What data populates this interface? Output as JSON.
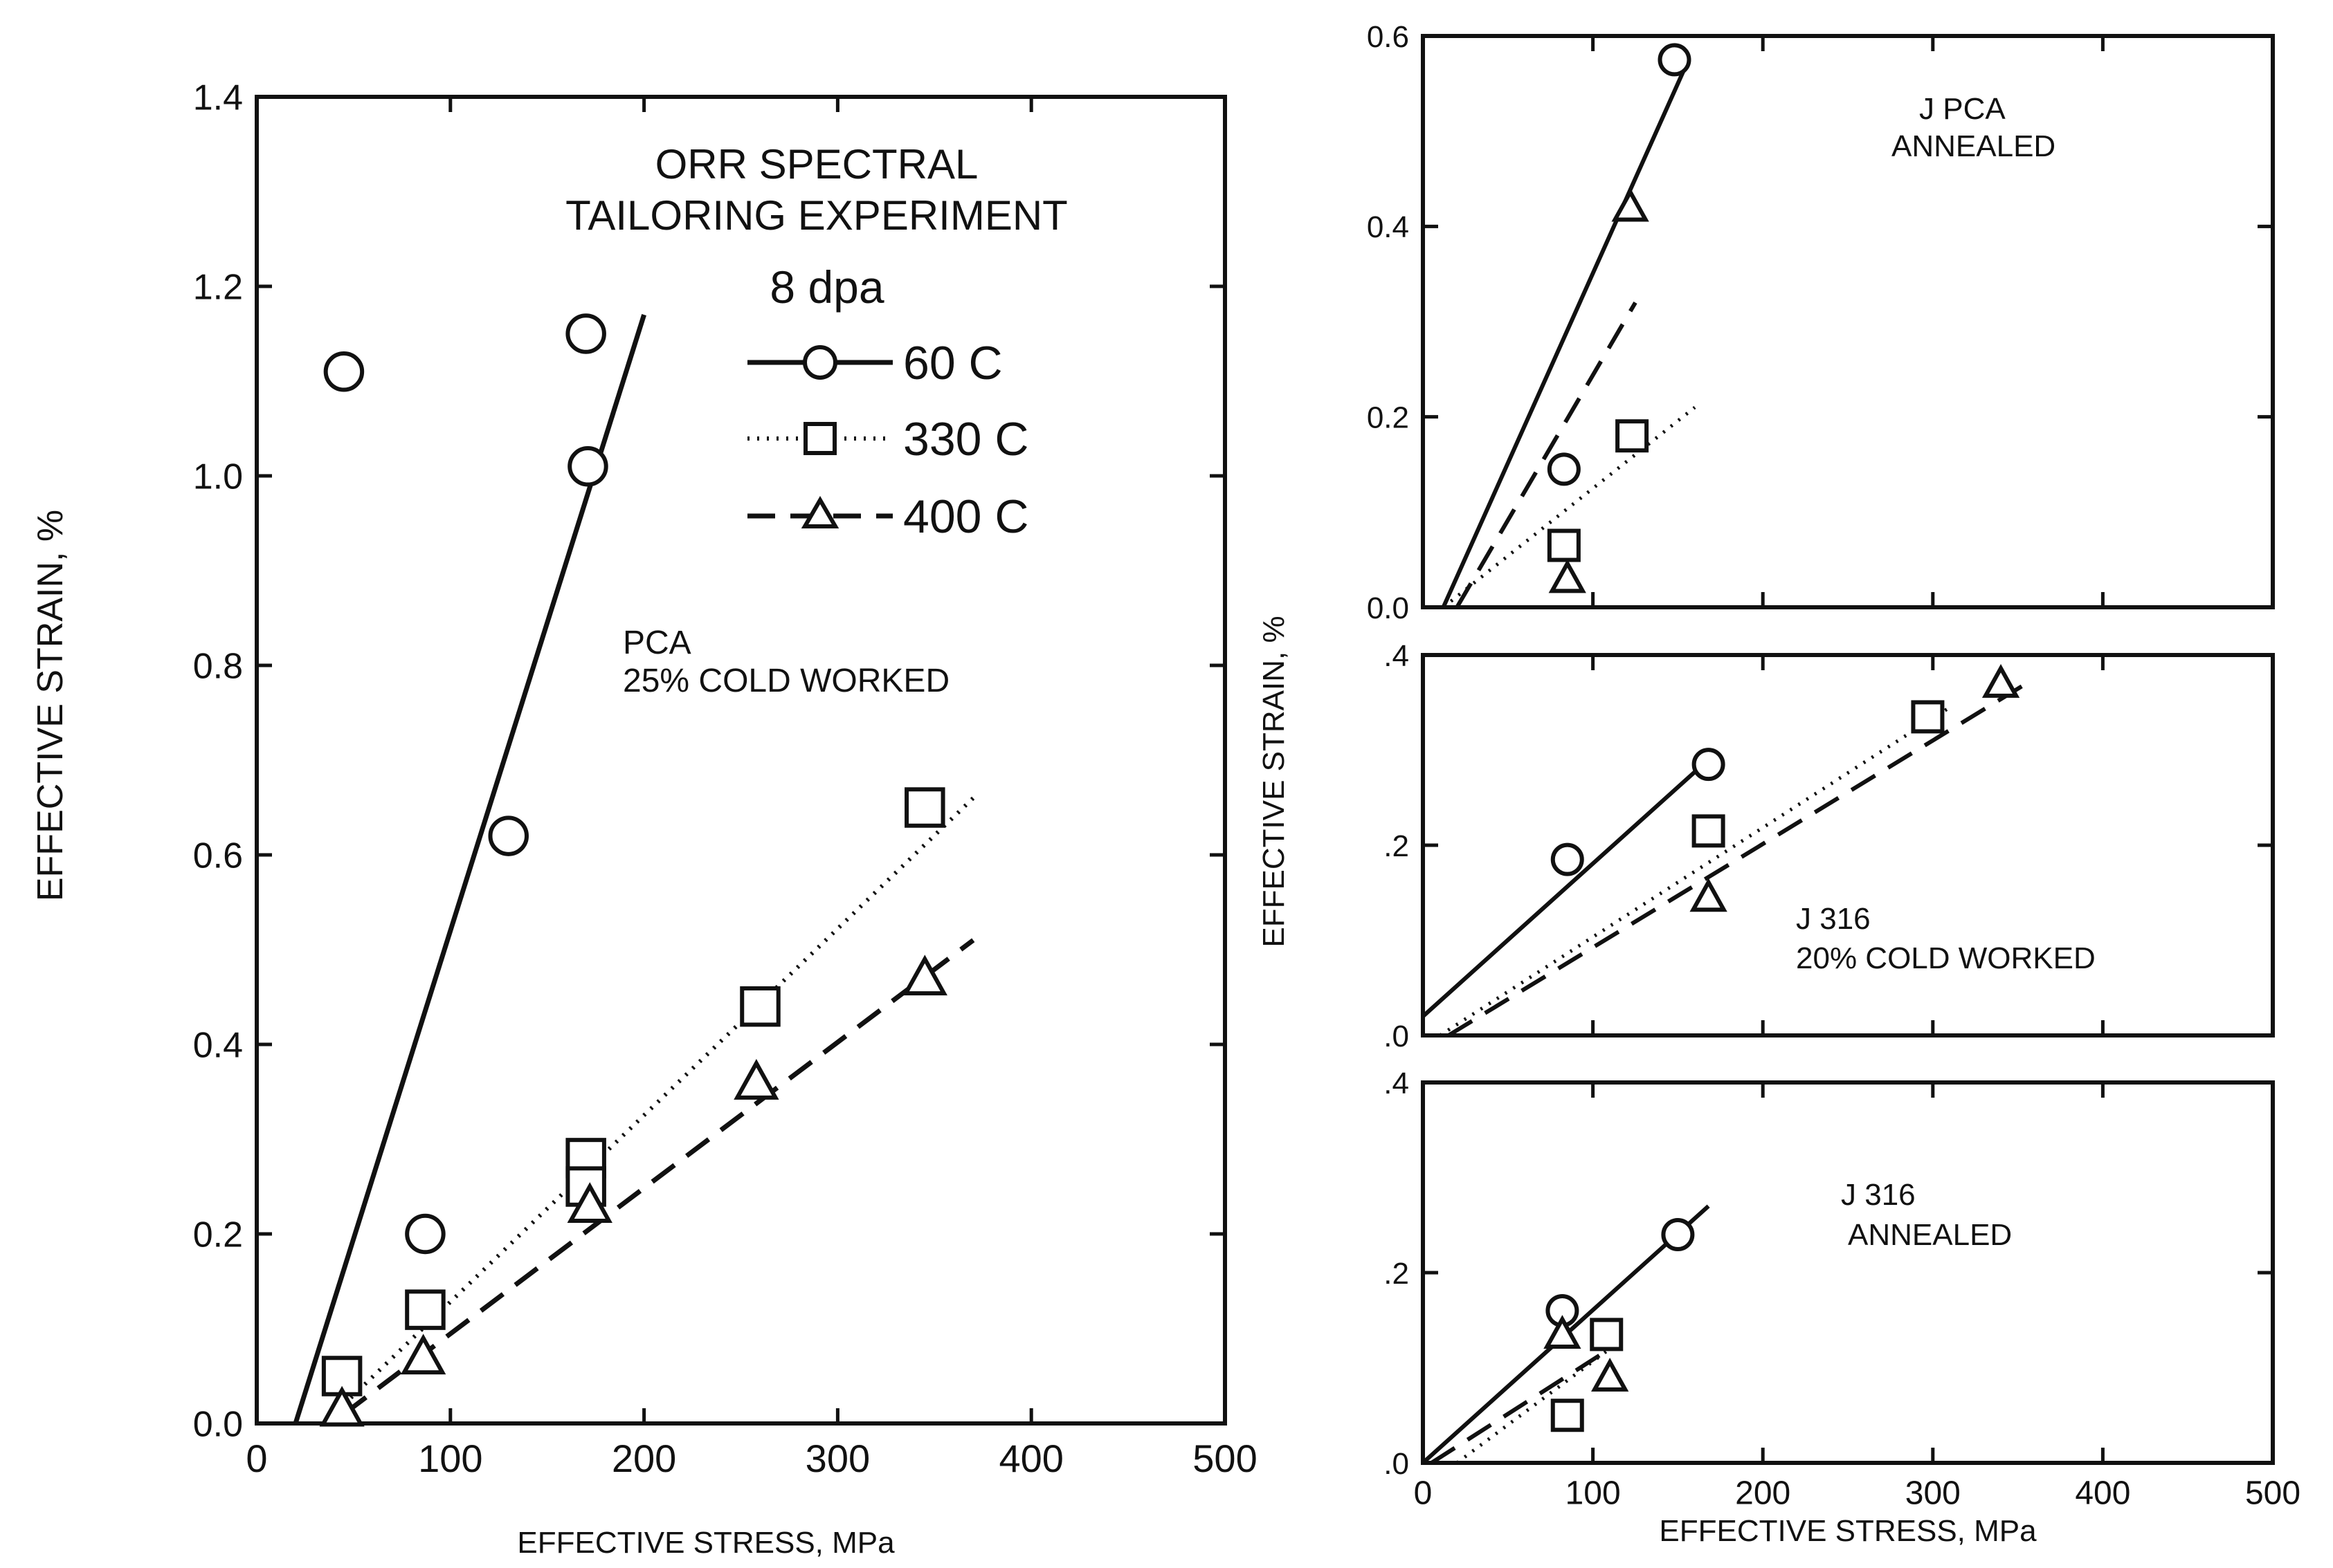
{
  "colors": {
    "ink": "#111111",
    "background": "#ffffff"
  },
  "legend": {
    "title_line1": "ORR SPECTRAL",
    "title_line2": "TAILORING EXPERIMENT",
    "dose": "8 dpa",
    "items": [
      {
        "label": "60 C",
        "marker": "circle",
        "line": "solid"
      },
      {
        "label": "330 C",
        "marker": "square",
        "line": "dotted"
      },
      {
        "label": "400 C",
        "marker": "triangle",
        "line": "dashed"
      }
    ]
  },
  "y_axis_label": "EFFECTIVE STRAIN, %",
  "x_axis_label": "EFFECTIVE STRESS, MPa",
  "chart_data": [
    {
      "type": "scatter",
      "title": "PCA 25% COLD WORKED",
      "title_lines": [
        "PCA",
        "25% COLD WORKED"
      ],
      "xlabel": "EFFECTIVE STRESS, MPa",
      "ylabel": "EFFECTIVE STRAIN, %",
      "xlim": [
        0,
        500
      ],
      "ylim": [
        0,
        1.4
      ],
      "xticks": [
        0,
        100,
        200,
        300,
        400,
        500
      ],
      "xtick_labels": [
        "0",
        "100",
        "200",
        "300",
        "400",
        "500"
      ],
      "yticks": [
        0,
        0.2,
        0.4,
        0.6,
        0.8,
        1.0,
        1.2,
        1.4
      ],
      "ytick_labels": [
        "0.0",
        "0.2",
        "0.4",
        "0.6",
        "0.8",
        "1.0",
        "1.2",
        "1.4"
      ],
      "series": [
        {
          "name": "60 C",
          "marker": "circle",
          "line": "solid",
          "points": [
            [
              45,
              1.11
            ],
            [
              170,
              1.15
            ],
            [
              171,
              1.01
            ],
            [
              130,
              0.62
            ],
            [
              87,
              0.2
            ]
          ],
          "fit": [
            [
              20,
              0.0
            ],
            [
              200,
              1.17
            ]
          ]
        },
        {
          "name": "330 C",
          "marker": "square",
          "line": "dotted",
          "points": [
            [
              44,
              0.05
            ],
            [
              87,
              0.12
            ],
            [
              170,
              0.28
            ],
            [
              170,
              0.25
            ],
            [
              260,
              0.44
            ],
            [
              345,
              0.65
            ]
          ],
          "fit": [
            [
              45,
              0.02
            ],
            [
              370,
              0.66
            ]
          ]
        },
        {
          "name": "400 C",
          "marker": "triangle",
          "line": "dashed",
          "points": [
            [
              44,
              0.015
            ],
            [
              86,
              0.07
            ],
            [
              172,
              0.23
            ],
            [
              258,
              0.36
            ],
            [
              345,
              0.47
            ]
          ],
          "fit": [
            [
              45,
              0.01
            ],
            [
              370,
              0.51
            ]
          ]
        }
      ]
    },
    {
      "type": "scatter",
      "title": "J PCA ANNEALED",
      "title_lines": [
        "J PCA",
        "ANNEALED"
      ],
      "xlabel": "",
      "ylabel": "EFFECTIVE STRAIN, %",
      "xlim": [
        0,
        500
      ],
      "ylim": [
        0,
        0.6
      ],
      "xticks": [],
      "xtick_labels": [],
      "yticks": [
        0,
        0.2,
        0.4,
        0.6
      ],
      "ytick_labels": [
        "0.0",
        "0.2",
        "0.4",
        "0.6"
      ],
      "series": [
        {
          "name": "60 C",
          "marker": "circle",
          "line": "solid",
          "points": [
            [
              148,
              0.575
            ],
            [
              83,
              0.145
            ]
          ],
          "fit": [
            [
              12,
              0.0
            ],
            [
              155,
              0.57
            ]
          ]
        },
        {
          "name": "330 C",
          "marker": "square",
          "line": "dotted",
          "points": [
            [
              123,
              0.18
            ],
            [
              83,
              0.065
            ]
          ],
          "fit": [
            [
              12,
              0.0
            ],
            [
              160,
              0.21
            ]
          ]
        },
        {
          "name": "400 C",
          "marker": "triangle",
          "line": "dashed",
          "points": [
            [
              122,
              0.42
            ],
            [
              85,
              0.03
            ]
          ],
          "fit": [
            [
              20,
              0.0
            ],
            [
              125,
              0.32
            ]
          ]
        }
      ]
    },
    {
      "type": "scatter",
      "title": "J 316 20% COLD WORKED",
      "title_lines": [
        "J 316",
        "20% COLD WORKED"
      ],
      "xlabel": "",
      "ylabel": "",
      "xlim": [
        0,
        500
      ],
      "ylim": [
        0,
        0.4
      ],
      "xticks": [],
      "xtick_labels": [],
      "yticks": [
        0,
        0.2,
        0.4
      ],
      "ytick_labels": [
        ".0",
        ".2",
        ".4"
      ],
      "series": [
        {
          "name": "60 C",
          "marker": "circle",
          "line": "solid",
          "points": [
            [
              85,
              0.185
            ],
            [
              168,
              0.285
            ]
          ],
          "fit": [
            [
              0,
              0.02
            ],
            [
              168,
              0.29
            ]
          ]
        },
        {
          "name": "330 C",
          "marker": "square",
          "line": "dotted",
          "points": [
            [
              168,
              0.215
            ],
            [
              297,
              0.335
            ]
          ],
          "fit": [
            [
              10,
              0.0
            ],
            [
              310,
              0.345
            ]
          ]
        },
        {
          "name": "400 C",
          "marker": "triangle",
          "line": "dashed",
          "points": [
            [
              168,
              0.145
            ],
            [
              340,
              0.37
            ]
          ],
          "fit": [
            [
              15,
              0.0
            ],
            [
              355,
              0.37
            ]
          ]
        }
      ]
    },
    {
      "type": "scatter",
      "title": "J 316 ANNEALED",
      "title_lines": [
        "J 316",
        "ANNEALED"
      ],
      "xlabel": "EFFECTIVE STRESS, MPa",
      "ylabel": "",
      "xlim": [
        0,
        500
      ],
      "ylim": [
        0,
        0.4
      ],
      "xticks": [
        0,
        100,
        200,
        300,
        400,
        500
      ],
      "xtick_labels": [
        "0",
        "100",
        "200",
        "300",
        "400",
        "500"
      ],
      "yticks": [
        0,
        0.2,
        0.4
      ],
      "ytick_labels": [
        ".0",
        ".2",
        ".4"
      ],
      "series": [
        {
          "name": "60 C",
          "marker": "circle",
          "line": "solid",
          "points": [
            [
              82,
              0.16
            ],
            [
              150,
              0.24
            ]
          ],
          "fit": [
            [
              0,
              0.0
            ],
            [
              168,
              0.27
            ]
          ]
        },
        {
          "name": "330 C",
          "marker": "square",
          "line": "dotted",
          "points": [
            [
              108,
              0.135
            ],
            [
              85,
              0.05
            ]
          ],
          "fit": [
            [
              20,
              0.0
            ],
            [
              110,
              0.12
            ]
          ]
        },
        {
          "name": "400 C",
          "marker": "triangle",
          "line": "dashed",
          "points": [
            [
              82,
              0.135
            ],
            [
              110,
              0.09
            ]
          ],
          "fit": [
            [
              5,
              0.0
            ],
            [
              110,
              0.12
            ]
          ]
        }
      ]
    }
  ]
}
